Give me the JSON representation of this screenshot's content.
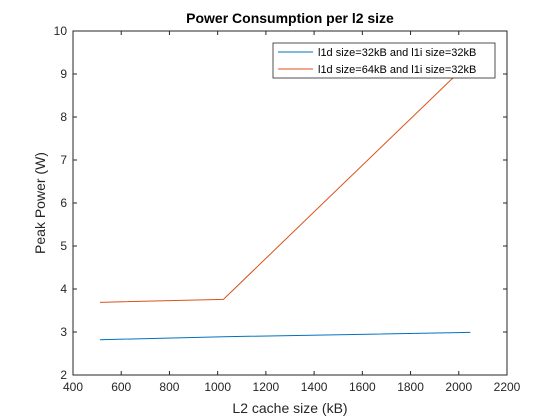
{
  "chart_data": {
    "type": "line",
    "title": "Power Consumption per l2 size",
    "xlabel": "L2 cache size (kB)",
    "ylabel": "Peak Power (W)",
    "xlim": [
      400,
      2200
    ],
    "ylim": [
      2,
      10
    ],
    "xticks": [
      400,
      600,
      800,
      1000,
      1200,
      1400,
      1600,
      1800,
      2000,
      2200
    ],
    "yticks": [
      2,
      3,
      4,
      5,
      6,
      7,
      8,
      9,
      10
    ],
    "grid": false,
    "legend_position": "top-right",
    "series": [
      {
        "name": "l1d size=32kB and l1i size=32kB",
        "color": "#0072BD",
        "x": [
          512,
          1024,
          2048
        ],
        "y": [
          2.82,
          2.89,
          2.99
        ]
      },
      {
        "name": "l1d size=64kB and l1i size=32kB",
        "color": "#D95319",
        "x": [
          512,
          1024,
          2048
        ],
        "y": [
          3.69,
          3.76,
          9.3
        ]
      }
    ]
  }
}
